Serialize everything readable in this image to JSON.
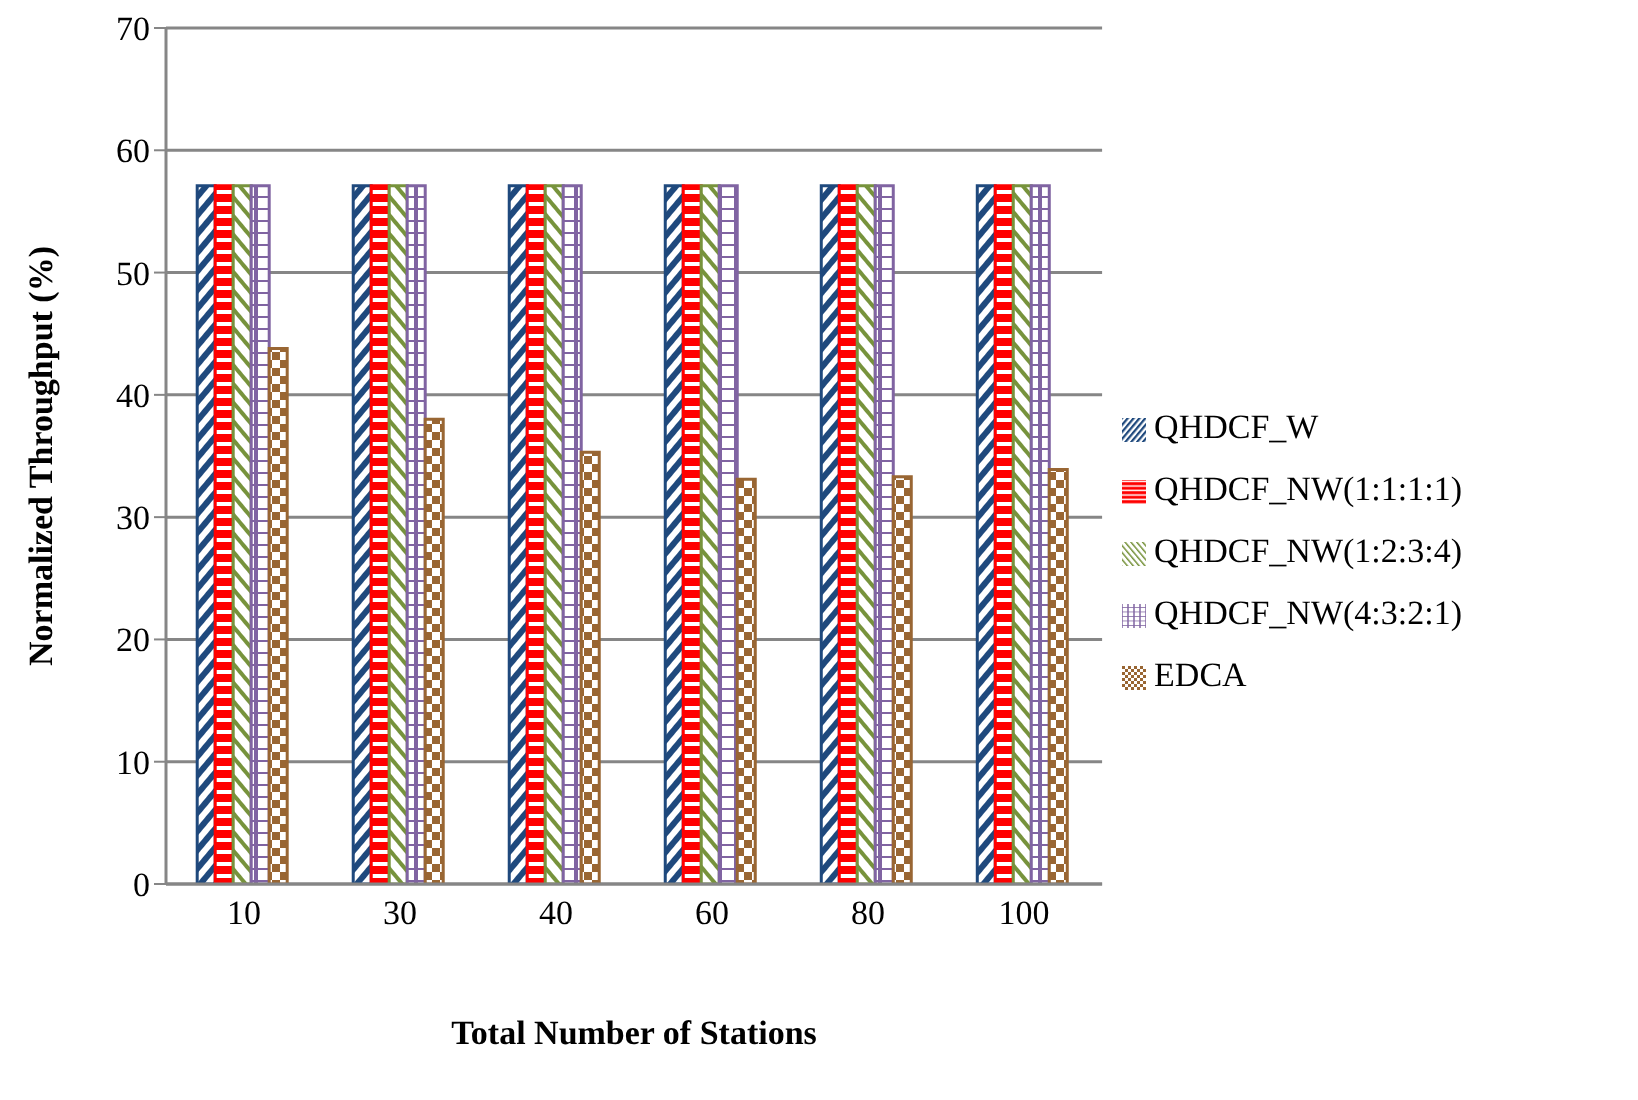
{
  "chart_data": {
    "type": "bar",
    "xlabel": "Total Number of Stations",
    "ylabel": "Normalized Throughput (%)",
    "categories": [
      "10",
      "30",
      "40",
      "60",
      "80",
      "100"
    ],
    "series": [
      {
        "name": "QHDCF_W",
        "color": "#1f497d",
        "values": [
          57.1,
          57.1,
          57.1,
          57.1,
          57.1,
          57.1
        ]
      },
      {
        "name": "QHDCF_NW(1:1:1:1)",
        "color": "#ff0000",
        "values": [
          57.1,
          57.1,
          57.1,
          57.1,
          57.1,
          57.1
        ]
      },
      {
        "name": "QHDCF_NW(1:2:3:4)",
        "color": "#77933c",
        "values": [
          57.1,
          57.1,
          57.1,
          57.1,
          57.1,
          57.1
        ]
      },
      {
        "name": "QHDCF_NW(4:3:2:1)",
        "color": "#8064a2",
        "values": [
          57.1,
          57.1,
          57.1,
          57.1,
          57.1,
          57.1
        ]
      },
      {
        "name": "EDCA",
        "color": "#996633",
        "values": [
          43.8,
          38.0,
          35.3,
          33.1,
          33.3,
          33.9
        ]
      }
    ],
    "ylim": [
      0,
      70
    ],
    "yticks": [
      0,
      10,
      20,
      30,
      40,
      50,
      60,
      70
    ],
    "grid": "y",
    "legend": "right"
  }
}
